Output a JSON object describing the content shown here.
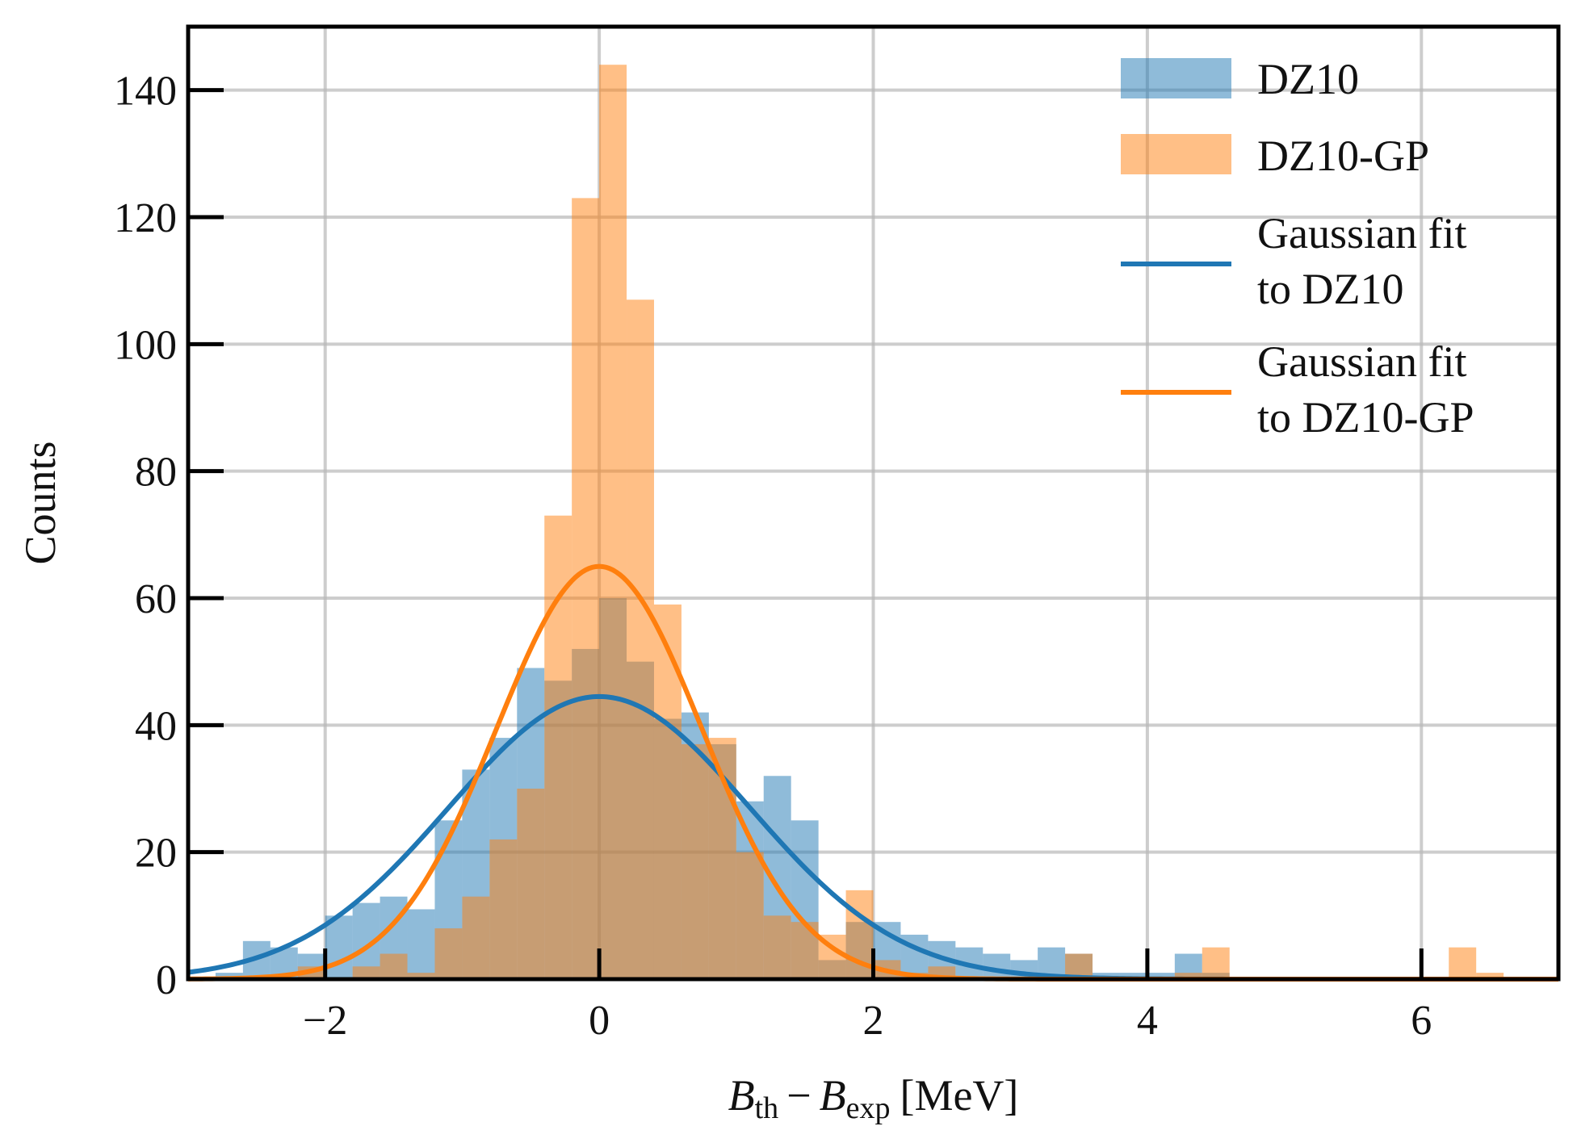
{
  "chart_data": {
    "type": "histogram",
    "xlabel": {
      "b1": "B",
      "sub1": "th",
      "minus": "−",
      "b2": "B",
      "sub2": "exp",
      "unit": "[MeV]"
    },
    "ylabel": "Counts",
    "xlim": [
      -3.0,
      7.0
    ],
    "ylim": [
      0,
      150
    ],
    "xticks": [
      -2,
      0,
      2,
      4,
      6
    ],
    "xtick_labels": [
      "−2",
      "0",
      "2",
      "4",
      "6"
    ],
    "yticks": [
      0,
      20,
      40,
      60,
      80,
      100,
      120,
      140
    ],
    "ytick_labels": [
      "0",
      "20",
      "40",
      "60",
      "80",
      "100",
      "120",
      "140"
    ],
    "bin_edges": [
      -2.8,
      -2.6,
      -2.4,
      -2.2,
      -2.0,
      -1.8,
      -1.6,
      -1.4,
      -1.2,
      -1.0,
      -0.8,
      -0.6,
      -0.4,
      -0.2,
      0.0,
      0.2,
      0.4,
      0.6,
      0.8,
      1.0,
      1.2,
      1.4,
      1.6,
      1.8,
      2.0,
      2.2,
      2.4,
      2.6,
      2.8,
      3.0,
      3.2,
      3.4,
      3.6,
      3.8,
      4.0,
      4.2,
      4.4,
      4.6,
      4.8,
      5.0,
      5.2,
      5.4,
      5.6,
      5.8,
      6.0,
      6.2,
      6.4,
      6.6,
      6.8
    ],
    "series": [
      {
        "name": "DZ10",
        "kind": "histogram",
        "color": "#1f77b4",
        "counts": [
          1,
          6,
          5,
          4,
          10,
          12,
          13,
          11,
          25,
          33,
          38,
          49,
          47,
          52,
          60,
          50,
          41,
          42,
          37,
          28,
          32,
          25,
          3,
          9,
          9,
          7,
          6,
          5,
          4,
          3,
          5,
          4,
          1,
          1,
          1,
          4,
          1,
          0,
          0,
          0,
          0,
          0,
          0,
          0,
          0,
          0,
          0,
          0
        ]
      },
      {
        "name": "DZ10-GP",
        "kind": "histogram",
        "color": "#ff7f0e",
        "counts": [
          0,
          0,
          0,
          2,
          0,
          2,
          4,
          1,
          8,
          13,
          22,
          30,
          73,
          123,
          144,
          107,
          59,
          37,
          38,
          20,
          10,
          9,
          7,
          14,
          3,
          1,
          2,
          0,
          0,
          0,
          0,
          4,
          0,
          0,
          0,
          1,
          5,
          0,
          0,
          0,
          0,
          0,
          0,
          0,
          0,
          5,
          1,
          0
        ]
      },
      {
        "name": "Gaussian fit to DZ10",
        "kind": "line",
        "color": "#1f77b4",
        "mu": 0.0,
        "sigma": 1.1,
        "amplitude": 44.5
      },
      {
        "name": "Gaussian fit to DZ10-GP",
        "kind": "line",
        "color": "#ff7f0e",
        "mu": 0.0,
        "sigma": 0.75,
        "amplitude": 65
      }
    ],
    "legend": {
      "placement": "top-right",
      "entries": [
        {
          "lines": [
            "DZ10"
          ],
          "style": "patch",
          "color": "#1f77b4"
        },
        {
          "lines": [
            "DZ10-GP"
          ],
          "style": "patch",
          "color": "#ff7f0e"
        },
        {
          "lines": [
            "Gaussian fit",
            "to DZ10"
          ],
          "style": "line",
          "color": "#1f77b4"
        },
        {
          "lines": [
            "Gaussian fit",
            "to DZ10-GP"
          ],
          "style": "line",
          "color": "#ff7f0e"
        }
      ]
    },
    "grid": true
  }
}
